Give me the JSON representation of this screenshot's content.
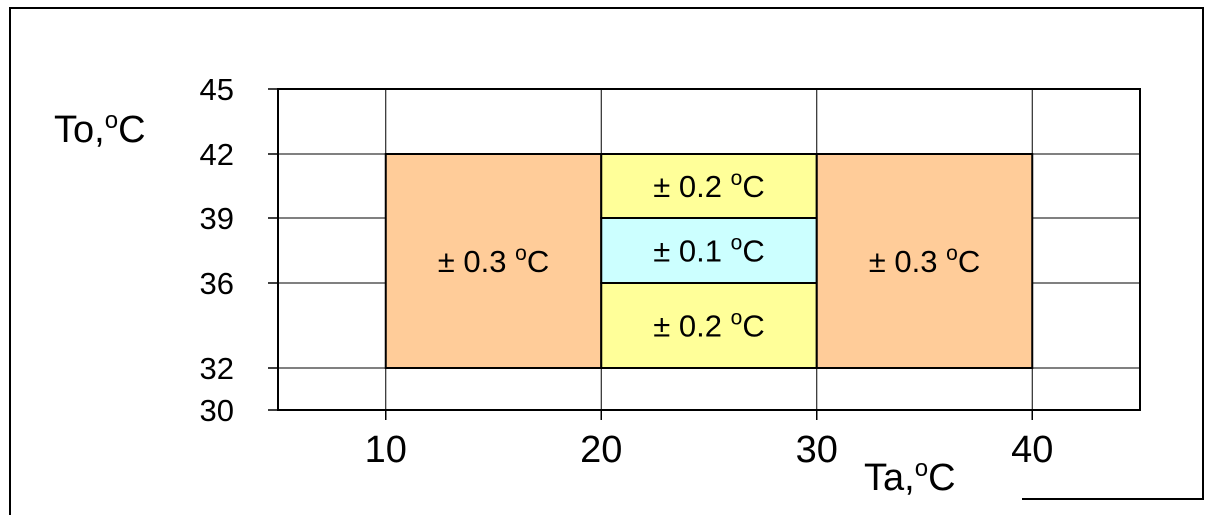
{
  "chart_data": {
    "type": "heatmap",
    "title": "",
    "xlabel": "Ta,",
    "xlabel_sup": "o",
    "xlabel_unit": "C",
    "ylabel": "To,",
    "ylabel_sup": "o",
    "ylabel_unit": "C",
    "xlim": [
      5,
      45
    ],
    "ylim": [
      30,
      45
    ],
    "x_ticks": [
      10,
      20,
      30,
      40
    ],
    "x_tick_labels": [
      "10",
      "20",
      "30",
      "40"
    ],
    "y_ticks": [
      30,
      32,
      36,
      39,
      42,
      45
    ],
    "y_tick_labels": [
      "30",
      "32",
      "36",
      "39",
      "42",
      "45"
    ],
    "grid": true,
    "regions": [
      {
        "x": [
          10,
          20
        ],
        "y": [
          32,
          42
        ],
        "label": "± 0.3 ",
        "sup": "o",
        "unit": "C",
        "color": "#FFCC99"
      },
      {
        "x": [
          20,
          30
        ],
        "y": [
          39,
          42
        ],
        "label": "± 0.2 ",
        "sup": "o",
        "unit": "C",
        "color": "#FFFF99"
      },
      {
        "x": [
          20,
          30
        ],
        "y": [
          36,
          39
        ],
        "label": "± 0.1 ",
        "sup": "o",
        "unit": "C",
        "color": "#CCFFFF"
      },
      {
        "x": [
          20,
          30
        ],
        "y": [
          32,
          36
        ],
        "label": "± 0.2 ",
        "sup": "o",
        "unit": "C",
        "color": "#FFFF99"
      },
      {
        "x": [
          30,
          40
        ],
        "y": [
          32,
          42
        ],
        "label": "± 0.3 ",
        "sup": "o",
        "unit": "C",
        "color": "#FFCC99"
      }
    ]
  }
}
